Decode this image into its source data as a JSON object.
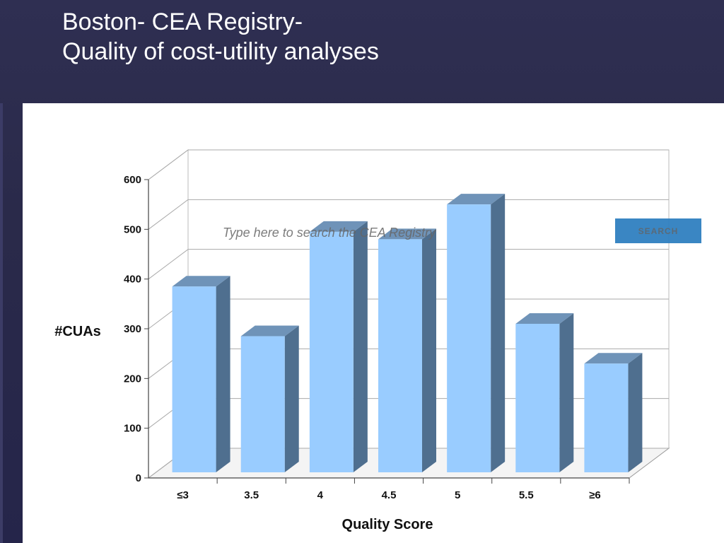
{
  "slide": {
    "title_line1": "Boston- CEA Registry-",
    "title_line2": "Quality of cost-utility analyses"
  },
  "search": {
    "placeholder": "Type here to search the CEA Registry",
    "button_label": "SEARCH"
  },
  "colors": {
    "bar_front": "#99ccff",
    "bar_side": "#4f6f8f",
    "bar_top": "#6f93b8",
    "search_button": "#2f7fc0"
  },
  "chart_data": {
    "type": "bar",
    "categories": [
      "≤3",
      "3.5",
      "4",
      "4.5",
      "5",
      "5.5",
      "≥6"
    ],
    "values": [
      385,
      285,
      495,
      480,
      550,
      310,
      230
    ],
    "xlabel": "Quality Score",
    "ylabel": "#CUAs",
    "ylim": [
      0,
      600
    ],
    "yticks": [
      0,
      100,
      200,
      300,
      400,
      500,
      600
    ],
    "grid": true,
    "style": "3d"
  }
}
